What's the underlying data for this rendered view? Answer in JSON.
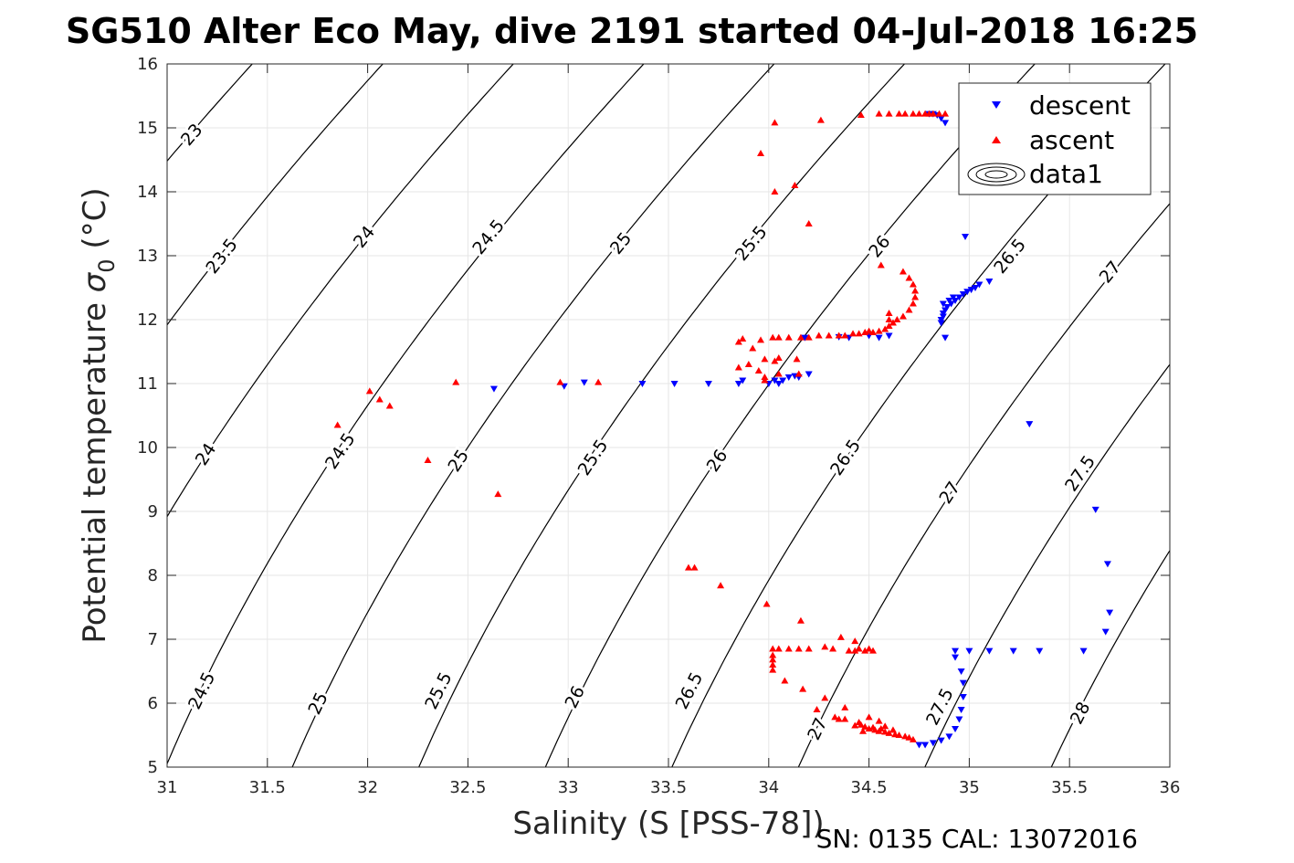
{
  "chart_data": {
    "type": "scatter",
    "title": "SG510 Alter Eco May, dive 2191 started 04-Jul-2018 16:25",
    "xlabel": "Salinity (S [PSS-78])",
    "ylabel_main": "Potential temperature ",
    "ylabel_symbol": "σ",
    "ylabel_sub": "0",
    "ylabel_unit": " (°C)",
    "xlim": [
      31,
      36
    ],
    "ylim": [
      5,
      16
    ],
    "xticks": [
      31,
      31.5,
      32,
      32.5,
      33,
      33.5,
      34,
      34.5,
      35,
      35.5,
      36
    ],
    "xtick_labels": [
      "31",
      "31.5",
      "32",
      "32.5",
      "33",
      "33.5",
      "34",
      "34.5",
      "35",
      "35.5",
      "36"
    ],
    "yticks": [
      5,
      6,
      7,
      8,
      9,
      10,
      11,
      12,
      13,
      14,
      15,
      16
    ],
    "ytick_labels": [
      "5",
      "6",
      "7",
      "8",
      "9",
      "10",
      "11",
      "12",
      "13",
      "14",
      "15",
      "16"
    ],
    "grid": true,
    "legend_position": "top-right",
    "annotation": "SN: 0135  CAL: 13072016",
    "isopycnals": [
      23,
      23.5,
      24,
      24.5,
      25,
      25.5,
      26,
      26.5,
      27,
      27.5,
      28
    ],
    "isopycnal_labels": [
      {
        "text": "23",
        "s": 31.12,
        "t": 14.9
      },
      {
        "text": "23.5",
        "s": 31.27,
        "t": 13.0
      },
      {
        "text": "24",
        "s": 31.98,
        "t": 13.3
      },
      {
        "text": "24",
        "s": 31.19,
        "t": 9.9
      },
      {
        "text": "24.5",
        "s": 32.6,
        "t": 13.3
      },
      {
        "text": "24.5",
        "s": 31.86,
        "t": 9.95
      },
      {
        "text": "24.5",
        "s": 31.17,
        "t": 6.2
      },
      {
        "text": "25",
        "s": 33.26,
        "t": 13.2
      },
      {
        "text": "25",
        "s": 32.45,
        "t": 9.8
      },
      {
        "text": "25",
        "s": 31.75,
        "t": 6.0
      },
      {
        "text": "25.5",
        "s": 33.91,
        "t": 13.2
      },
      {
        "text": "25.5",
        "s": 33.12,
        "t": 9.85
      },
      {
        "text": "25.5",
        "s": 32.35,
        "t": 6.2
      },
      {
        "text": "26",
        "s": 34.55,
        "t": 13.15
      },
      {
        "text": "26",
        "s": 33.74,
        "t": 9.8
      },
      {
        "text": "26",
        "s": 33.03,
        "t": 6.1
      },
      {
        "text": "26.5",
        "s": 35.2,
        "t": 13.0
      },
      {
        "text": "26.5",
        "s": 34.38,
        "t": 9.85
      },
      {
        "text": "26.5",
        "s": 33.6,
        "t": 6.2
      },
      {
        "text": "27",
        "s": 35.7,
        "t": 12.75
      },
      {
        "text": "27",
        "s": 34.9,
        "t": 9.3
      },
      {
        "text": "27",
        "s": 34.24,
        "t": 5.6
      },
      {
        "text": "27.5",
        "s": 35.55,
        "t": 9.6
      },
      {
        "text": "27.5",
        "s": 34.85,
        "t": 5.95
      },
      {
        "text": "28",
        "s": 35.55,
        "t": 5.85
      }
    ],
    "series": [
      {
        "name": "descent",
        "color": "#0000ff",
        "marker": "triangle-down",
        "points": [
          [
            34.8,
            15.22
          ],
          [
            34.82,
            15.22
          ],
          [
            34.84,
            15.2
          ],
          [
            34.86,
            15.15
          ],
          [
            34.88,
            15.08
          ],
          [
            34.98,
            13.3
          ],
          [
            35.1,
            12.6
          ],
          [
            35.05,
            12.55
          ],
          [
            35.03,
            12.5
          ],
          [
            35.01,
            12.47
          ],
          [
            34.99,
            12.44
          ],
          [
            34.97,
            12.4
          ],
          [
            34.95,
            12.35
          ],
          [
            34.93,
            12.3
          ],
          [
            34.91,
            12.25
          ],
          [
            34.89,
            12.2
          ],
          [
            34.88,
            12.15
          ],
          [
            34.87,
            12.1
          ],
          [
            34.87,
            12.05
          ],
          [
            34.86,
            12.0
          ],
          [
            34.86,
            11.95
          ],
          [
            34.87,
            12.25
          ],
          [
            34.9,
            12.3
          ],
          [
            34.92,
            12.35
          ],
          [
            34.88,
            11.72
          ],
          [
            34.6,
            11.75
          ],
          [
            34.55,
            11.72
          ],
          [
            34.5,
            11.75
          ],
          [
            34.4,
            11.72
          ],
          [
            34.35,
            11.73
          ],
          [
            34.18,
            11.72
          ],
          [
            34.2,
            11.15
          ],
          [
            34.15,
            11.1
          ],
          [
            34.13,
            11.12
          ],
          [
            34.1,
            11.1
          ],
          [
            34.07,
            11.05
          ],
          [
            34.05,
            11.0
          ],
          [
            34.03,
            11.05
          ],
          [
            34.0,
            11.0
          ],
          [
            33.85,
            11.0
          ],
          [
            33.87,
            11.05
          ],
          [
            33.7,
            11.0
          ],
          [
            33.53,
            11.0
          ],
          [
            33.37,
            11.0
          ],
          [
            33.08,
            11.02
          ],
          [
            32.98,
            10.96
          ],
          [
            32.63,
            10.92
          ],
          [
            35.3,
            10.37
          ],
          [
            35.63,
            9.03
          ],
          [
            35.69,
            8.18
          ],
          [
            35.7,
            7.42
          ],
          [
            35.68,
            7.12
          ],
          [
            35.57,
            6.82
          ],
          [
            35.35,
            6.82
          ],
          [
            35.22,
            6.82
          ],
          [
            35.1,
            6.82
          ],
          [
            35.0,
            6.82
          ],
          [
            34.93,
            6.82
          ],
          [
            34.93,
            6.72
          ],
          [
            34.96,
            6.5
          ],
          [
            34.97,
            6.32
          ],
          [
            34.97,
            6.1
          ],
          [
            34.96,
            5.9
          ],
          [
            34.95,
            5.75
          ],
          [
            34.93,
            5.6
          ],
          [
            34.9,
            5.48
          ],
          [
            34.86,
            5.42
          ],
          [
            34.82,
            5.38
          ],
          [
            34.78,
            5.35
          ],
          [
            34.75,
            5.35
          ]
        ]
      },
      {
        "name": "ascent",
        "color": "#ff0000",
        "marker": "triangle-up",
        "points": [
          [
            34.88,
            15.22
          ],
          [
            34.85,
            15.22
          ],
          [
            34.82,
            15.22
          ],
          [
            34.8,
            15.22
          ],
          [
            34.78,
            15.22
          ],
          [
            34.75,
            15.22
          ],
          [
            34.72,
            15.22
          ],
          [
            34.68,
            15.22
          ],
          [
            34.65,
            15.22
          ],
          [
            34.6,
            15.22
          ],
          [
            34.55,
            15.22
          ],
          [
            34.46,
            15.2
          ],
          [
            34.26,
            15.12
          ],
          [
            34.03,
            15.08
          ],
          [
            33.96,
            14.6
          ],
          [
            34.13,
            14.1
          ],
          [
            34.03,
            14.0
          ],
          [
            34.2,
            13.5
          ],
          [
            34.56,
            12.85
          ],
          [
            34.67,
            12.75
          ],
          [
            34.7,
            12.65
          ],
          [
            34.72,
            12.55
          ],
          [
            34.73,
            12.45
          ],
          [
            34.73,
            12.35
          ],
          [
            34.72,
            12.25
          ],
          [
            34.7,
            12.15
          ],
          [
            34.67,
            12.05
          ],
          [
            34.64,
            12.0
          ],
          [
            34.62,
            11.95
          ],
          [
            34.6,
            11.9
          ],
          [
            34.6,
            12.0
          ],
          [
            34.6,
            12.1
          ],
          [
            34.58,
            11.85
          ],
          [
            34.55,
            11.82
          ],
          [
            34.52,
            11.8
          ],
          [
            34.5,
            11.82
          ],
          [
            34.48,
            11.8
          ],
          [
            34.45,
            11.78
          ],
          [
            34.42,
            11.78
          ],
          [
            34.38,
            11.75
          ],
          [
            34.35,
            11.75
          ],
          [
            34.3,
            11.75
          ],
          [
            34.25,
            11.75
          ],
          [
            34.2,
            11.72
          ],
          [
            34.16,
            11.72
          ],
          [
            34.1,
            11.72
          ],
          [
            34.05,
            11.72
          ],
          [
            34.02,
            11.72
          ],
          [
            33.96,
            11.68
          ],
          [
            33.87,
            11.7
          ],
          [
            33.85,
            11.65
          ],
          [
            33.92,
            11.55
          ],
          [
            33.98,
            11.38
          ],
          [
            34.03,
            11.35
          ],
          [
            34.05,
            11.4
          ],
          [
            33.9,
            11.3
          ],
          [
            33.85,
            11.25
          ],
          [
            33.95,
            11.2
          ],
          [
            33.98,
            11.1
          ],
          [
            33.98,
            11.05
          ],
          [
            34.14,
            11.38
          ],
          [
            34.15,
            11.15
          ],
          [
            34.05,
            11.15
          ],
          [
            33.15,
            11.02
          ],
          [
            32.96,
            11.02
          ],
          [
            32.44,
            11.02
          ],
          [
            32.01,
            10.88
          ],
          [
            32.06,
            10.75
          ],
          [
            32.11,
            10.65
          ],
          [
            31.85,
            10.35
          ],
          [
            32.3,
            9.8
          ],
          [
            32.65,
            9.27
          ],
          [
            33.6,
            8.12
          ],
          [
            33.63,
            8.12
          ],
          [
            33.76,
            7.84
          ],
          [
            33.99,
            7.55
          ],
          [
            34.16,
            7.29
          ],
          [
            34.02,
            6.85
          ],
          [
            34.05,
            6.85
          ],
          [
            34.1,
            6.85
          ],
          [
            34.15,
            6.85
          ],
          [
            34.2,
            6.85
          ],
          [
            34.28,
            6.88
          ],
          [
            34.32,
            6.85
          ],
          [
            34.36,
            7.03
          ],
          [
            34.43,
            6.97
          ],
          [
            34.45,
            6.85
          ],
          [
            34.5,
            6.85
          ],
          [
            34.52,
            6.82
          ],
          [
            34.48,
            6.82
          ],
          [
            34.43,
            6.82
          ],
          [
            34.4,
            6.82
          ],
          [
            34.02,
            6.75
          ],
          [
            34.02,
            6.68
          ],
          [
            34.02,
            6.6
          ],
          [
            34.02,
            6.52
          ],
          [
            34.08,
            6.35
          ],
          [
            34.17,
            6.22
          ],
          [
            34.24,
            5.9
          ],
          [
            34.28,
            6.08
          ],
          [
            34.33,
            5.78
          ],
          [
            34.35,
            5.75
          ],
          [
            34.38,
            5.75
          ],
          [
            34.38,
            5.93
          ],
          [
            34.45,
            5.7
          ],
          [
            34.43,
            5.65
          ],
          [
            34.46,
            5.66
          ],
          [
            34.48,
            5.63
          ],
          [
            34.5,
            5.6
          ],
          [
            34.53,
            5.58
          ],
          [
            34.55,
            5.56
          ],
          [
            34.58,
            5.55
          ],
          [
            34.6,
            5.53
          ],
          [
            34.63,
            5.51
          ],
          [
            34.65,
            5.5
          ],
          [
            34.68,
            5.48
          ],
          [
            34.7,
            5.46
          ],
          [
            34.72,
            5.43
          ],
          [
            34.5,
            5.78
          ],
          [
            34.55,
            5.72
          ],
          [
            34.58,
            5.64
          ],
          [
            34.62,
            5.58
          ],
          [
            34.47,
            5.56
          ],
          [
            34.52,
            5.62
          ],
          [
            34.56,
            5.6
          ]
        ]
      },
      {
        "name": "data1",
        "color": "#000000",
        "marker": "contour",
        "points": []
      }
    ]
  }
}
